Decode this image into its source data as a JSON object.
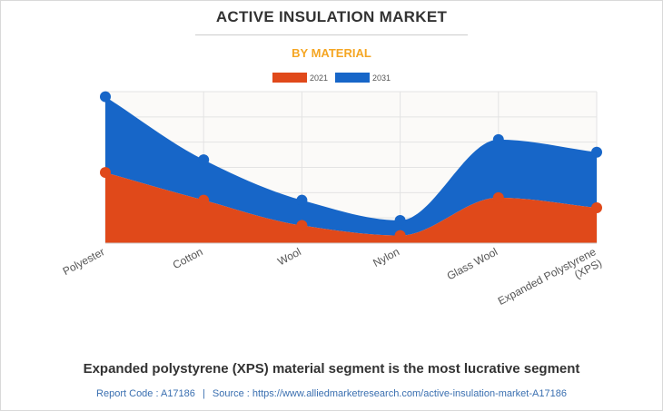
{
  "header": {
    "title": "ACTIVE INSULATION MARKET",
    "subtitle": "BY MATERIAL"
  },
  "footer": {
    "headline": "Expanded polystyrene (XPS) material segment is the most lucrative segment",
    "report_code_label": "Report Code : A17186",
    "separator": "|",
    "source_label": "Source : https://www.alliedmarketresearch.com/active-insulation-market-A17186"
  },
  "colors": {
    "series_2021": "#e0491a",
    "series_2031": "#1766c8",
    "title": "#333333",
    "subtitle": "#f5a623",
    "source": "#3a6fb0"
  },
  "chart_data": {
    "type": "area",
    "stacked": true,
    "categories": [
      "Polyester",
      "Cotton",
      "Wool",
      "Nylon",
      "Glass Wool",
      "Expanded Polystyrene (XPS)"
    ],
    "series": [
      {
        "name": "2021",
        "values": [
          2.8,
          1.7,
          0.7,
          0.3,
          1.8,
          1.4
        ]
      },
      {
        "name": "2031",
        "values": [
          3.0,
          1.6,
          1.0,
          0.6,
          2.3,
          2.2
        ]
      }
    ],
    "ylim": [
      0,
      6
    ],
    "y_gridlines": 6,
    "show_y_tick_labels": false,
    "grid": true,
    "legend_position": "top-center"
  }
}
